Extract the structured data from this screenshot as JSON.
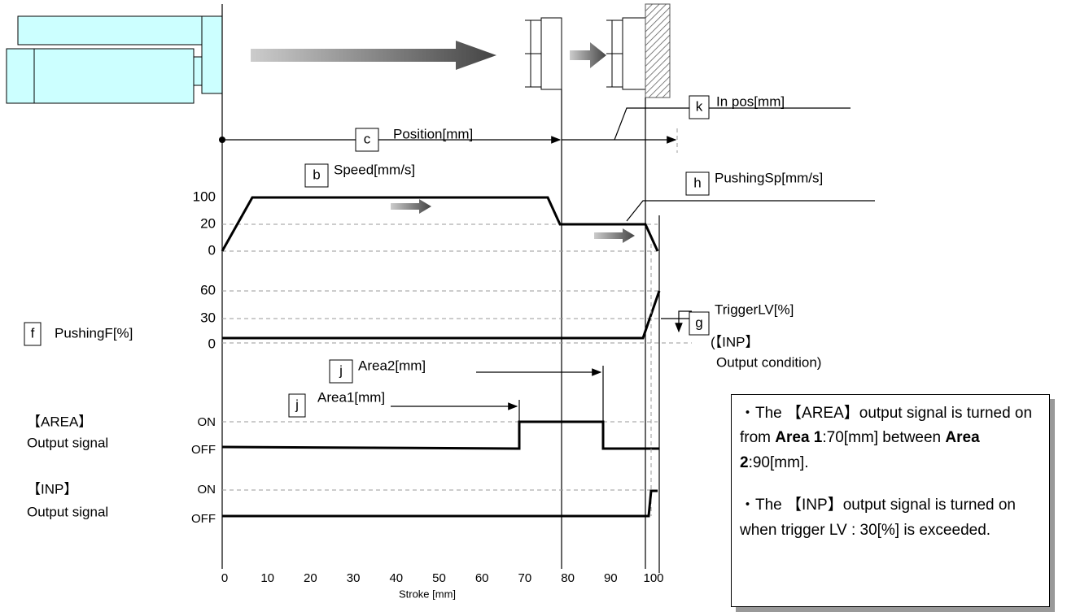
{
  "callouts": [
    {
      "letter": "c",
      "label": "Position[mm]"
    },
    {
      "letter": "k",
      "label": "In pos[mm]"
    },
    {
      "letter": "b",
      "label": "Speed[mm/s]"
    },
    {
      "letter": "h",
      "label": "PushingSp[mm/s]"
    },
    {
      "letter": "g",
      "label": "TriggerLV[%]"
    },
    {
      "letter": "f",
      "label": "PushingF[%]"
    },
    {
      "letter": "j",
      "label": "Area2[mm]"
    },
    {
      "letter": "j",
      "label": "Area1[mm]"
    }
  ],
  "trigger_note": [
    "(【INP】",
    "Output  condition)"
  ],
  "speed_axis": [
    "100",
    "20",
    "0"
  ],
  "force_axis": [
    "60",
    "30",
    "0"
  ],
  "area_signal": {
    "title": "【AREA】",
    "subtitle": "Output signal",
    "levels": [
      "ON",
      "OFF"
    ]
  },
  "inp_signal": {
    "title": "【INP】",
    "subtitle": "Output signal",
    "levels": [
      "ON",
      "OFF"
    ]
  },
  "x_axis": {
    "ticks": [
      0,
      10,
      20,
      30,
      40,
      50,
      60,
      70,
      80,
      90,
      100
    ],
    "label": "Stroke [mm]"
  },
  "notes": [
    [
      "・The 【AREA】output signal is turned on from ",
      "Area 1",
      ":70[mm] between ",
      "Area 2",
      ":90[mm]."
    ],
    [
      "・The 【INP】output signal is turned on when trigger LV : 30[%] is exceeded."
    ]
  ]
}
